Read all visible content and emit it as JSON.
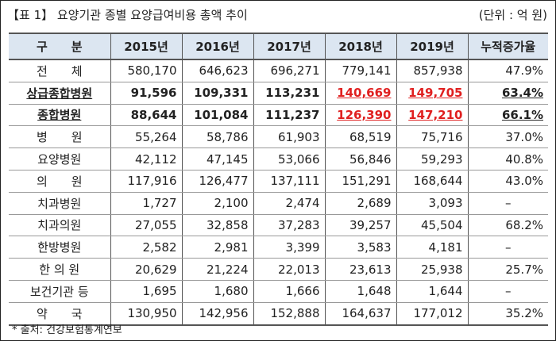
{
  "title": "【표 1】 요양기관 종별 요양급여비용 총액 추이",
  "unit": "(단위 : 억 원)",
  "headers": [
    "구　　분",
    "2015년",
    "2016년",
    "2017년",
    "2018년",
    "2019년",
    "누적증가율"
  ],
  "rows": [
    {
      "name": "전　　체",
      "values": [
        "580,170",
        "646,623",
        "696,271",
        "779,141",
        "857,938"
      ],
      "rate": "47.9%"
    },
    {
      "name": "상급종합병원",
      "values": [
        "91,596",
        "109,331",
        "113,231",
        "140,669",
        "149,705"
      ],
      "rate": "63.4%",
      "bold": true
    },
    {
      "name": "종합병원",
      "values": [
        "88,644",
        "101,084",
        "111,237",
        "126,390",
        "147,210"
      ],
      "rate": "66.1%",
      "bold": true
    },
    {
      "name": "병　　원",
      "values": [
        "55,264",
        "58,786",
        "61,903",
        "68,519",
        "75,716"
      ],
      "rate": "37.0%"
    },
    {
      "name": "요양병원",
      "values": [
        "42,112",
        "47,145",
        "53,066",
        "56,846",
        "59,293"
      ],
      "rate": "40.8%"
    },
    {
      "name": "의　　원",
      "values": [
        "117,916",
        "126,477",
        "137,111",
        "151,291",
        "168,644"
      ],
      "rate": "43.0%"
    },
    {
      "name": "치과병원",
      "values": [
        "1,727",
        "2,100",
        "2,474",
        "2,689",
        "3,093"
      ],
      "rate": "–"
    },
    {
      "name": "치과의원",
      "values": [
        "27,055",
        "32,858",
        "37,283",
        "39,257",
        "45,504"
      ],
      "rate": "68.2%"
    },
    {
      "name": "한방병원",
      "values": [
        "2,582",
        "2,981",
        "3,399",
        "3,583",
        "4,181"
      ],
      "rate": "–"
    },
    {
      "name": "한 의 원",
      "values": [
        "20,629",
        "21,224",
        "22,013",
        "23,613",
        "25,938"
      ],
      "rate": "25.7%"
    },
    {
      "name": "보건기관 등",
      "values": [
        "1,695",
        "1,680",
        "1,666",
        "1,648",
        "1,644"
      ],
      "rate": "–"
    },
    {
      "name": "약　　국",
      "values": [
        "130,950",
        "142,956",
        "152,888",
        "164,637",
        "177,012"
      ],
      "rate": "35.2%"
    }
  ],
  "source": "* 출처: 건강보험통계연보",
  "highlight_color": "#e02020"
}
